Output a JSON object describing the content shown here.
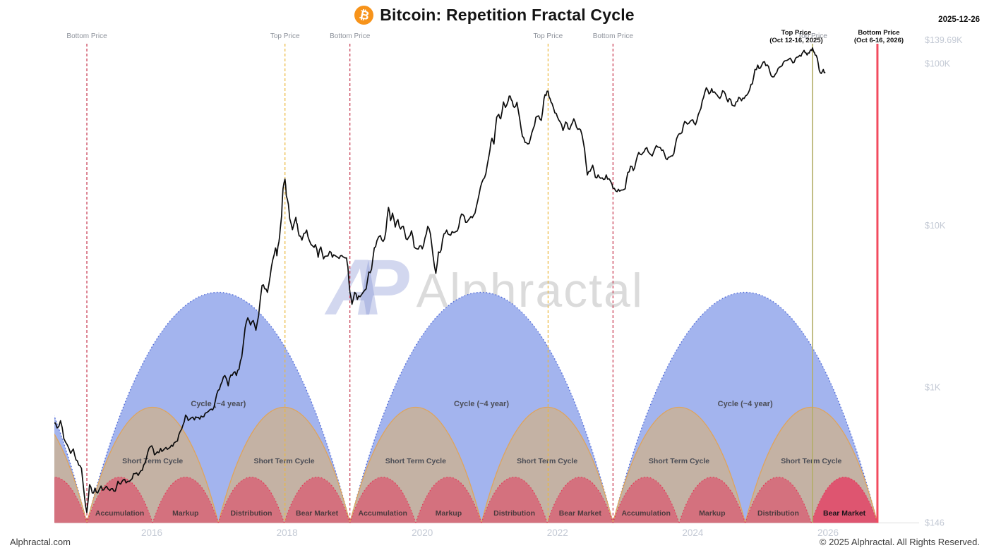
{
  "header": {
    "title": "Bitcoin: Repetition Fractal Cycle",
    "bitcoin_symbol": "₿",
    "date": "2025-12-26"
  },
  "watermark": {
    "logo_text": "AP",
    "brand_text": "Alphractal"
  },
  "footer": {
    "site": "Alphractal.com",
    "copyright": "© 2025 Alphractal. All Rights Reserved."
  },
  "colors": {
    "bitcoin_orange": "#f7931a",
    "price_line": "#0c0c0c",
    "axis_text": "#c3c9d4",
    "event_label_grey": "#8d929b",
    "cycle_blue_fill": "#a3b4ee",
    "cycle_blue_border": "#4b66d6",
    "short_term_fill": "#c4b2a4",
    "short_term_border": "#dfa45c",
    "phase_fill": "#d4717e",
    "phase_border": "#e23a55",
    "phase_highlight_fill": "#de5570",
    "phase_text": "#4c3a3e",
    "phase_text_highlight": "#19141a",
    "cycle_text": "#4a4c55",
    "bottom_line": "#c53048",
    "top_line": "#ecb83d",
    "current_top_line": "#b3ae68",
    "forecast_bottom_line": "#f24b5e",
    "baseline": "#e4e4e4"
  },
  "chart_data": {
    "type": "line",
    "title": "Bitcoin: Repetition Fractal Cycle",
    "x_axis": {
      "ticks": [
        2016,
        2018,
        2020,
        2022,
        2024,
        2026
      ],
      "start_year": 2014.55,
      "end_year": 2027.2
    },
    "y_axis": {
      "scale": "log",
      "tick_labels": [
        "$139.69K",
        "$100K",
        "$10K",
        "$1K",
        "$146"
      ],
      "tick_values": [
        139690,
        100000,
        10000,
        1000,
        146
      ]
    },
    "events": [
      {
        "type": "bottom",
        "label": "Bottom Price",
        "year": 2015.04
      },
      {
        "type": "top",
        "label": "Top Price",
        "year": 2017.97
      },
      {
        "type": "bottom",
        "label": "Bottom Price",
        "year": 2018.93
      },
      {
        "type": "top",
        "label": "Top Price",
        "year": 2021.86
      },
      {
        "type": "bottom",
        "label": "Bottom Price",
        "year": 2022.82
      },
      {
        "type": "top-current",
        "label": "Top Price",
        "year": 2025.77,
        "annotation_line1": "Top Price",
        "annotation_line2": "(Oct 12-16, 2025)",
        "annotation_dx": -23
      },
      {
        "type": "bottom-forecast",
        "label": "Bottom Price",
        "year": 2026.73,
        "annotation_line1": "Bottom Price",
        "annotation_line2": "(Oct 6-16, 2026)",
        "annotation_dx": 2
      }
    ],
    "cycles": {
      "bottom_years": [
        2011.19,
        2015.04,
        2018.93,
        2022.82,
        2026.73
      ],
      "cycle_label": "Cycle (~4 year)",
      "short_term_label": "Short Term Cycle",
      "phase_labels": [
        "Accumulation",
        "Markup",
        "Distribution",
        "Bear Market"
      ],
      "highlighted": {
        "cycle_index": 3,
        "phase_index": 3
      }
    },
    "price_series_usd": [
      [
        2014.55,
        600
      ],
      [
        2014.6,
        560
      ],
      [
        2014.65,
        620
      ],
      [
        2014.7,
        480
      ],
      [
        2014.75,
        440
      ],
      [
        2014.8,
        390
      ],
      [
        2014.84,
        415
      ],
      [
        2014.88,
        355
      ],
      [
        2014.92,
        330
      ],
      [
        2014.96,
        315
      ],
      [
        2015.0,
        220
      ],
      [
        2015.04,
        168
      ],
      [
        2015.08,
        250
      ],
      [
        2015.12,
        222
      ],
      [
        2015.16,
        238
      ],
      [
        2015.2,
        222
      ],
      [
        2015.25,
        245
      ],
      [
        2015.29,
        232
      ],
      [
        2015.33,
        244
      ],
      [
        2015.38,
        230
      ],
      [
        2015.42,
        236
      ],
      [
        2015.46,
        228
      ],
      [
        2015.5,
        262
      ],
      [
        2015.54,
        252
      ],
      [
        2015.58,
        268
      ],
      [
        2015.62,
        256
      ],
      [
        2015.67,
        262
      ],
      [
        2015.71,
        272
      ],
      [
        2015.75,
        292
      ],
      [
        2015.8,
        285
      ],
      [
        2015.84,
        305
      ],
      [
        2015.88,
        330
      ],
      [
        2015.92,
        362
      ],
      [
        2015.96,
        420
      ],
      [
        2016.0,
        434
      ],
      [
        2016.04,
        382
      ],
      [
        2016.08,
        398
      ],
      [
        2016.13,
        418
      ],
      [
        2016.17,
        408
      ],
      [
        2016.21,
        424
      ],
      [
        2016.25,
        418
      ],
      [
        2016.29,
        438
      ],
      [
        2016.33,
        452
      ],
      [
        2016.38,
        465
      ],
      [
        2016.42,
        532
      ],
      [
        2016.46,
        582
      ],
      [
        2016.5,
        672
      ],
      [
        2016.54,
        622
      ],
      [
        2016.58,
        645
      ],
      [
        2016.63,
        628
      ],
      [
        2016.67,
        648
      ],
      [
        2016.71,
        635
      ],
      [
        2016.75,
        655
      ],
      [
        2016.79,
        690
      ],
      [
        2016.84,
        710
      ],
      [
        2016.88,
        732
      ],
      [
        2016.92,
        752
      ],
      [
        2016.96,
        905
      ],
      [
        2017.0,
        968
      ],
      [
        2017.04,
        1080
      ],
      [
        2017.08,
        1180
      ],
      [
        2017.13,
        1020
      ],
      [
        2017.17,
        1190
      ],
      [
        2017.21,
        1230
      ],
      [
        2017.25,
        1180
      ],
      [
        2017.29,
        1290
      ],
      [
        2017.33,
        1530
      ],
      [
        2017.38,
        2320
      ],
      [
        2017.42,
        2680
      ],
      [
        2017.46,
        2420
      ],
      [
        2017.5,
        2580
      ],
      [
        2017.54,
        2250
      ],
      [
        2017.58,
        2780
      ],
      [
        2017.63,
        4250
      ],
      [
        2017.67,
        4050
      ],
      [
        2017.71,
        3850
      ],
      [
        2017.75,
        4820
      ],
      [
        2017.79,
        6150
      ],
      [
        2017.83,
        7250
      ],
      [
        2017.85,
        6480
      ],
      [
        2017.88,
        7900
      ],
      [
        2017.9,
        9500
      ],
      [
        2017.92,
        11400
      ],
      [
        2017.94,
        16800
      ],
      [
        2017.97,
        19300
      ],
      [
        2017.99,
        15200
      ],
      [
        2018.02,
        13500
      ],
      [
        2018.04,
        11000
      ],
      [
        2018.08,
        9400
      ],
      [
        2018.13,
        11200
      ],
      [
        2018.15,
        10200
      ],
      [
        2018.18,
        8600
      ],
      [
        2018.22,
        8100
      ],
      [
        2018.25,
        8900
      ],
      [
        2018.29,
        9350
      ],
      [
        2018.33,
        8050
      ],
      [
        2018.38,
        7450
      ],
      [
        2018.42,
        7600
      ],
      [
        2018.46,
        6350
      ],
      [
        2018.5,
        7350
      ],
      [
        2018.54,
        6200
      ],
      [
        2018.58,
        6450
      ],
      [
        2018.63,
        6900
      ],
      [
        2018.67,
        6350
      ],
      [
        2018.71,
        6500
      ],
      [
        2018.75,
        6350
      ],
      [
        2018.79,
        6480
      ],
      [
        2018.83,
        6380
      ],
      [
        2018.88,
        6280
      ],
      [
        2018.9,
        5550
      ],
      [
        2018.93,
        3850
      ],
      [
        2018.96,
        3250
      ],
      [
        2019.0,
        3850
      ],
      [
        2019.04,
        3480
      ],
      [
        2019.08,
        3620
      ],
      [
        2019.13,
        3880
      ],
      [
        2019.17,
        4050
      ],
      [
        2019.21,
        5150
      ],
      [
        2019.25,
        5350
      ],
      [
        2019.29,
        7250
      ],
      [
        2019.33,
        8050
      ],
      [
        2019.38,
        8650
      ],
      [
        2019.42,
        7950
      ],
      [
        2019.46,
        9100
      ],
      [
        2019.5,
        12900
      ],
      [
        2019.53,
        10700
      ],
      [
        2019.56,
        11900
      ],
      [
        2019.6,
        9750
      ],
      [
        2019.64,
        10850
      ],
      [
        2019.68,
        9480
      ],
      [
        2019.72,
        9850
      ],
      [
        2019.76,
        8250
      ],
      [
        2019.8,
        8450
      ],
      [
        2019.84,
        9250
      ],
      [
        2019.88,
        7350
      ],
      [
        2019.92,
        7150
      ],
      [
        2019.96,
        7450
      ],
      [
        2020.0,
        7150
      ],
      [
        2020.04,
        8350
      ],
      [
        2020.08,
        9850
      ],
      [
        2020.12,
        8850
      ],
      [
        2020.16,
        6450
      ],
      [
        2020.2,
        5050
      ],
      [
        2020.24,
        6850
      ],
      [
        2020.28,
        7050
      ],
      [
        2020.32,
        8850
      ],
      [
        2020.36,
        9350
      ],
      [
        2020.4,
        8750
      ],
      [
        2020.44,
        9150
      ],
      [
        2020.48,
        9050
      ],
      [
        2020.52,
        9250
      ],
      [
        2020.56,
        11050
      ],
      [
        2020.6,
        11650
      ],
      [
        2020.64,
        10450
      ],
      [
        2020.68,
        10750
      ],
      [
        2020.72,
        11350
      ],
      [
        2020.76,
        11550
      ],
      [
        2020.8,
        13050
      ],
      [
        2020.84,
        15550
      ],
      [
        2020.88,
        18350
      ],
      [
        2020.92,
        19650
      ],
      [
        2020.96,
        23550
      ],
      [
        2021.0,
        29050
      ],
      [
        2021.03,
        34500
      ],
      [
        2021.06,
        31800
      ],
      [
        2021.1,
        46500
      ],
      [
        2021.13,
        48500
      ],
      [
        2021.16,
        45500
      ],
      [
        2021.2,
        57800
      ],
      [
        2021.23,
        53500
      ],
      [
        2021.27,
        58800
      ],
      [
        2021.3,
        62900
      ],
      [
        2021.33,
        58500
      ],
      [
        2021.36,
        53500
      ],
      [
        2021.4,
        57500
      ],
      [
        2021.44,
        45500
      ],
      [
        2021.48,
        35500
      ],
      [
        2021.52,
        32500
      ],
      [
        2021.56,
        31800
      ],
      [
        2021.6,
        34500
      ],
      [
        2021.64,
        39500
      ],
      [
        2021.68,
        46500
      ],
      [
        2021.72,
        47500
      ],
      [
        2021.76,
        44500
      ],
      [
        2021.8,
        60500
      ],
      [
        2021.83,
        63500
      ],
      [
        2021.86,
        67500
      ],
      [
        2021.89,
        60500
      ],
      [
        2021.92,
        56500
      ],
      [
        2021.96,
        49500
      ],
      [
        2022.0,
        46500
      ],
      [
        2022.04,
        43500
      ],
      [
        2022.08,
        38500
      ],
      [
        2022.12,
        43500
      ],
      [
        2022.16,
        39500
      ],
      [
        2022.2,
        41500
      ],
      [
        2022.24,
        45500
      ],
      [
        2022.28,
        40500
      ],
      [
        2022.32,
        39500
      ],
      [
        2022.36,
        36500
      ],
      [
        2022.4,
        29500
      ],
      [
        2022.44,
        20500
      ],
      [
        2022.48,
        21500
      ],
      [
        2022.52,
        23500
      ],
      [
        2022.56,
        19800
      ],
      [
        2022.6,
        20500
      ],
      [
        2022.64,
        19500
      ],
      [
        2022.68,
        19200
      ],
      [
        2022.72,
        20500
      ],
      [
        2022.76,
        19400
      ],
      [
        2022.79,
        18500
      ],
      [
        2022.82,
        16900
      ],
      [
        2022.86,
        16300
      ],
      [
        2022.9,
        16700
      ],
      [
        2022.94,
        16500
      ],
      [
        2023.0,
        16800
      ],
      [
        2023.04,
        21200
      ],
      [
        2023.08,
        23200
      ],
      [
        2023.12,
        21800
      ],
      [
        2023.16,
        24800
      ],
      [
        2023.2,
        28200
      ],
      [
        2023.24,
        27300
      ],
      [
        2023.28,
        28500
      ],
      [
        2023.32,
        30200
      ],
      [
        2023.36,
        27800
      ],
      [
        2023.4,
        26800
      ],
      [
        2023.44,
        29800
      ],
      [
        2023.48,
        30500
      ],
      [
        2023.52,
        30200
      ],
      [
        2023.56,
        29200
      ],
      [
        2023.6,
        25900
      ],
      [
        2023.64,
        26300
      ],
      [
        2023.68,
        26800
      ],
      [
        2023.72,
        27800
      ],
      [
        2023.76,
        34200
      ],
      [
        2023.8,
        36800
      ],
      [
        2023.84,
        37400
      ],
      [
        2023.88,
        43800
      ],
      [
        2023.92,
        42200
      ],
      [
        2023.96,
        43800
      ],
      [
        2024.0,
        44800
      ],
      [
        2024.04,
        41800
      ],
      [
        2024.08,
        48200
      ],
      [
        2024.12,
        52800
      ],
      [
        2024.16,
        61800
      ],
      [
        2024.2,
        70800
      ],
      [
        2024.24,
        64800
      ],
      [
        2024.28,
        69800
      ],
      [
        2024.32,
        66800
      ],
      [
        2024.36,
        63800
      ],
      [
        2024.4,
        60800
      ],
      [
        2024.44,
        67800
      ],
      [
        2024.48,
        64800
      ],
      [
        2024.52,
        57800
      ],
      [
        2024.56,
        59800
      ],
      [
        2024.6,
        54800
      ],
      [
        2024.64,
        57800
      ],
      [
        2024.68,
        61800
      ],
      [
        2024.72,
        58800
      ],
      [
        2024.76,
        60800
      ],
      [
        2024.8,
        63800
      ],
      [
        2024.84,
        68800
      ],
      [
        2024.88,
        74800
      ],
      [
        2024.92,
        91800
      ],
      [
        2024.96,
        97800
      ],
      [
        2025.0,
        93800
      ],
      [
        2025.04,
        101800
      ],
      [
        2025.08,
        96800
      ],
      [
        2025.12,
        95800
      ],
      [
        2025.16,
        83800
      ],
      [
        2025.2,
        82800
      ],
      [
        2025.24,
        87800
      ],
      [
        2025.28,
        94800
      ],
      [
        2025.32,
        96800
      ],
      [
        2025.36,
        103800
      ],
      [
        2025.4,
        104800
      ],
      [
        2025.44,
        107800
      ],
      [
        2025.48,
        100800
      ],
      [
        2025.52,
        107800
      ],
      [
        2025.56,
        109800
      ],
      [
        2025.6,
        110800
      ],
      [
        2025.63,
        117800
      ],
      [
        2025.66,
        116800
      ],
      [
        2025.69,
        112800
      ],
      [
        2025.72,
        115800
      ],
      [
        2025.75,
        121800
      ],
      [
        2025.77,
        124800
      ],
      [
        2025.79,
        117800
      ],
      [
        2025.81,
        112800
      ],
      [
        2025.84,
        107800
      ],
      [
        2025.87,
        90800
      ],
      [
        2025.9,
        86800
      ],
      [
        2025.93,
        91800
      ],
      [
        2025.96,
        88300
      ]
    ]
  }
}
